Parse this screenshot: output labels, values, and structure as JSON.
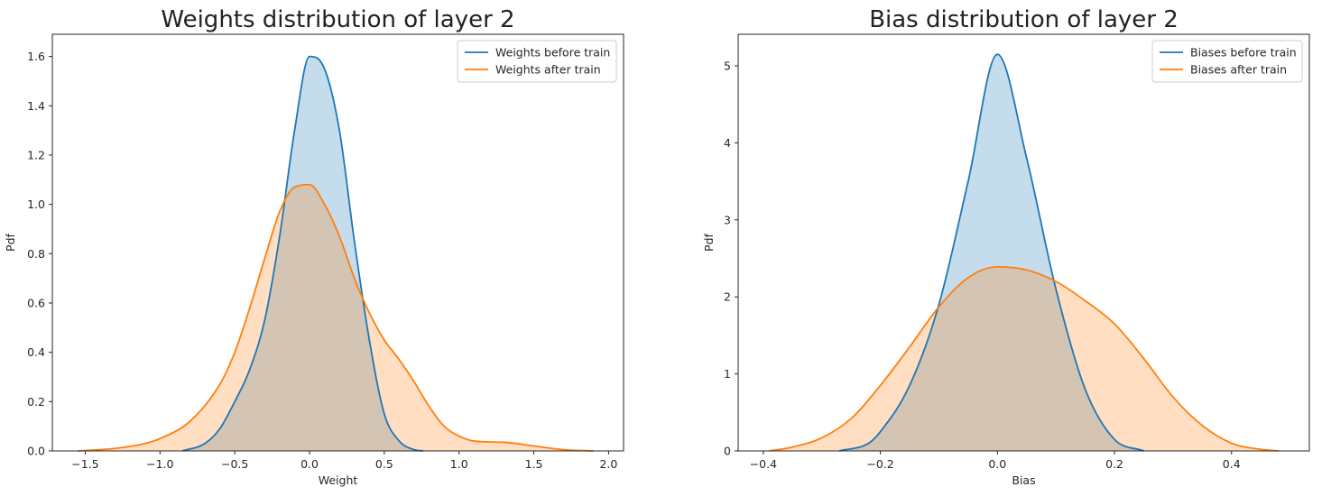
{
  "colors": {
    "before": "#1f77b4",
    "after": "#ff7f0e",
    "before_fill": "#c5dbee",
    "after_fill": "#ffdbbe",
    "overlap_fill": "#d2c3b5",
    "axis": "#262626"
  },
  "chart_data": [
    {
      "type": "area",
      "title": "Weights distribution of layer 2",
      "xlabel": "Weight",
      "ylabel": "Pdf",
      "xlim": [
        -1.72,
        2.1
      ],
      "ylim": [
        0,
        1.69
      ],
      "xticks": [
        -1.5,
        -1.0,
        -0.5,
        0.0,
        0.5,
        1.0,
        1.5,
        2.0
      ],
      "xtick_labels": [
        "−1.5",
        "−1.0",
        "−0.5",
        "0.0",
        "0.5",
        "1.0",
        "1.5",
        "2.0"
      ],
      "yticks": [
        0.0,
        0.2,
        0.4,
        0.6,
        0.8,
        1.0,
        1.2,
        1.4,
        1.6
      ],
      "ytick_labels": [
        "0.0",
        "0.2",
        "0.4",
        "0.6",
        "0.8",
        "1.0",
        "1.2",
        "1.4",
        "1.6"
      ],
      "grid": false,
      "legend": "top-right",
      "series": [
        {
          "name": "Weights before train",
          "color_key": "before",
          "x": [
            -0.85,
            -0.7,
            -0.6,
            -0.5,
            -0.4,
            -0.3,
            -0.2,
            -0.1,
            0.0,
            0.1,
            0.2,
            0.3,
            0.4,
            0.5,
            0.6,
            0.7,
            0.76
          ],
          "y": [
            0.0,
            0.03,
            0.09,
            0.2,
            0.33,
            0.53,
            0.87,
            1.3,
            1.6,
            1.55,
            1.3,
            0.85,
            0.45,
            0.15,
            0.04,
            0.005,
            0.0
          ]
        },
        {
          "name": "Weights after train",
          "color_key": "after",
          "x": [
            -1.55,
            -1.3,
            -1.1,
            -1.0,
            -0.8,
            -0.6,
            -0.5,
            -0.4,
            -0.3,
            -0.2,
            -0.1,
            0.0,
            0.1,
            0.2,
            0.3,
            0.4,
            0.5,
            0.6,
            0.7,
            0.8,
            0.9,
            1.0,
            1.1,
            1.3,
            1.5,
            1.7,
            1.9
          ],
          "y": [
            0.0,
            0.01,
            0.03,
            0.05,
            0.12,
            0.27,
            0.4,
            0.58,
            0.78,
            0.97,
            1.07,
            1.08,
            1.0,
            0.87,
            0.7,
            0.56,
            0.45,
            0.37,
            0.28,
            0.18,
            0.1,
            0.06,
            0.04,
            0.035,
            0.02,
            0.005,
            0.0
          ]
        }
      ]
    },
    {
      "type": "area",
      "title": "Bias distribution of layer 2",
      "xlabel": "Bias",
      "ylabel": "Pdf",
      "xlim": [
        -0.443,
        0.533
      ],
      "ylim": [
        0,
        5.41
      ],
      "xticks": [
        -0.4,
        -0.2,
        0.0,
        0.2,
        0.4
      ],
      "xtick_labels": [
        "−0.4",
        "−0.2",
        "0.0",
        "0.2",
        "0.4"
      ],
      "yticks": [
        0,
        1,
        2,
        3,
        4,
        5
      ],
      "ytick_labels": [
        "0",
        "1",
        "2",
        "3",
        "4",
        "5"
      ],
      "grid": false,
      "legend": "top-right",
      "series": [
        {
          "name": "Biases before train",
          "color_key": "before",
          "x": [
            -0.27,
            -0.22,
            -0.2,
            -0.15,
            -0.1,
            -0.05,
            0.0,
            0.05,
            0.1,
            0.15,
            0.2,
            0.25
          ],
          "y": [
            0.0,
            0.1,
            0.25,
            0.85,
            1.9,
            3.5,
            5.15,
            3.8,
            2.1,
            0.8,
            0.15,
            0.0
          ]
        },
        {
          "name": "Biases after train",
          "color_key": "after",
          "x": [
            -0.39,
            -0.35,
            -0.3,
            -0.25,
            -0.2,
            -0.15,
            -0.1,
            -0.05,
            0.0,
            0.05,
            0.1,
            0.15,
            0.2,
            0.25,
            0.3,
            0.35,
            0.4,
            0.45,
            0.48
          ],
          "y": [
            0.0,
            0.05,
            0.17,
            0.42,
            0.85,
            1.35,
            1.87,
            2.25,
            2.39,
            2.35,
            2.2,
            1.95,
            1.65,
            1.2,
            0.7,
            0.33,
            0.1,
            0.02,
            0.0
          ]
        }
      ]
    }
  ]
}
